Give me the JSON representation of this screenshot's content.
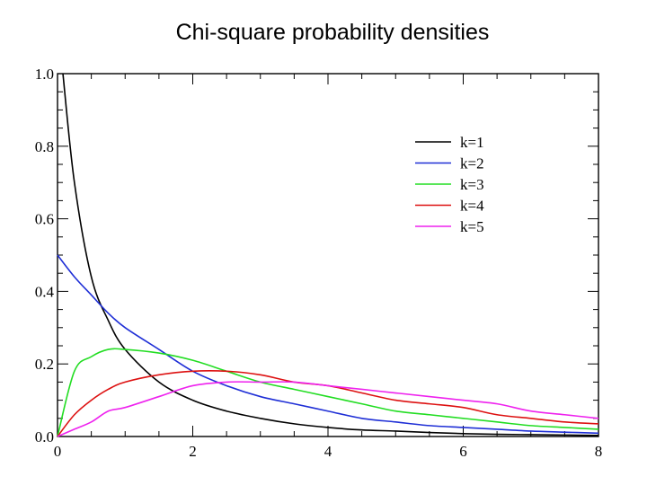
{
  "page": {
    "title": "Chi-square probability densities"
  },
  "chart_data": {
    "type": "line",
    "title": "Chi-square probability densities",
    "xlabel": "",
    "ylabel": "",
    "xlim": [
      0,
      8
    ],
    "ylim": [
      0,
      1.0
    ],
    "x_ticks": [
      "0",
      "2",
      "4",
      "6",
      "8"
    ],
    "y_ticks": [
      "0.0",
      "0.2",
      "0.4",
      "0.6",
      "0.8",
      "1.0"
    ],
    "grid": false,
    "legend_position": "top-right",
    "x": [
      0,
      0.25,
      0.5,
      0.75,
      1,
      1.5,
      2,
      2.5,
      3,
      3.5,
      4,
      4.5,
      5,
      5.5,
      6,
      6.5,
      7,
      7.5,
      8
    ],
    "series": [
      {
        "name": "k=1",
        "color": "#000000",
        "values": [
          null,
          0.7,
          0.44,
          0.32,
          0.24,
          0.15,
          0.1,
          0.07,
          0.05,
          0.035,
          0.025,
          0.018,
          0.015,
          0.011,
          0.008,
          0.006,
          0.005,
          0.004,
          0.003
        ]
      },
      {
        "name": "k=2",
        "color": "#1f2fd6",
        "values": [
          0.5,
          0.44,
          0.39,
          0.34,
          0.3,
          0.24,
          0.18,
          0.14,
          0.11,
          0.09,
          0.07,
          0.05,
          0.04,
          0.03,
          0.025,
          0.02,
          0.015,
          0.012,
          0.009
        ]
      },
      {
        "name": "k=3",
        "color": "#22dd22",
        "values": [
          0,
          0.18,
          0.22,
          0.24,
          0.24,
          0.23,
          0.21,
          0.18,
          0.15,
          0.13,
          0.11,
          0.09,
          0.07,
          0.06,
          0.05,
          0.04,
          0.03,
          0.025,
          0.02
        ]
      },
      {
        "name": "k=4",
        "color": "#dd1111",
        "values": [
          0,
          0.06,
          0.1,
          0.13,
          0.15,
          0.17,
          0.18,
          0.18,
          0.17,
          0.15,
          0.14,
          0.12,
          0.1,
          0.09,
          0.08,
          0.06,
          0.05,
          0.04,
          0.035
        ]
      },
      {
        "name": "k=5",
        "color": "#ee22ee",
        "values": [
          0,
          0.02,
          0.04,
          0.07,
          0.08,
          0.11,
          0.14,
          0.15,
          0.15,
          0.15,
          0.14,
          0.13,
          0.12,
          0.11,
          0.1,
          0.09,
          0.07,
          0.06,
          0.05
        ]
      }
    ]
  }
}
